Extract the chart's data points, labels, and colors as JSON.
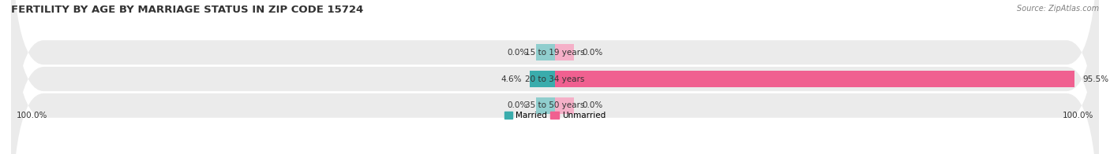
{
  "title": "FERTILITY BY AGE BY MARRIAGE STATUS IN ZIP CODE 15724",
  "source": "Source: ZipAtlas.com",
  "categories": [
    "15 to 19 years",
    "20 to 34 years",
    "35 to 50 years"
  ],
  "married_values": [
    0.0,
    4.6,
    0.0
  ],
  "unmarried_values": [
    0.0,
    95.5,
    0.0
  ],
  "married_color": "#3aacac",
  "married_light_color": "#90cece",
  "unmarried_color": "#f06090",
  "unmarried_light_color": "#f5b0c8",
  "row_bg_color": "#ebebeb",
  "row_bg_light": "#f5f5f5",
  "axis_left_label": "100.0%",
  "axis_right_label": "100.0%",
  "title_fontsize": 9.5,
  "label_fontsize": 7.5,
  "figsize": [
    14.06,
    1.96
  ],
  "dpi": 100,
  "xlim": 100
}
